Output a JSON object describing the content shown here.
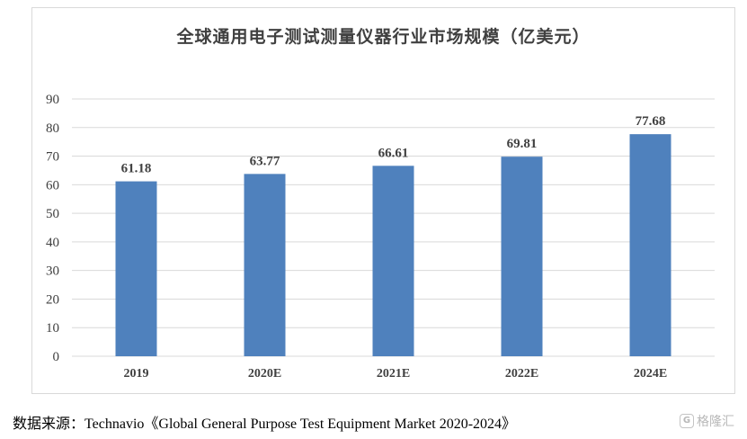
{
  "chart_data": {
    "type": "bar",
    "title": "全球通用电子测试测量仪器行业市场规模（亿美元）",
    "categories": [
      "2019",
      "2020E",
      "2021E",
      "2022E",
      "2024E"
    ],
    "values": [
      61.18,
      63.77,
      66.61,
      69.81,
      77.68
    ],
    "value_labels": [
      "61.18",
      "63.77",
      "66.61",
      "69.81",
      "77.68"
    ],
    "yticks": [
      "0",
      "10",
      "20",
      "30",
      "40",
      "50",
      "60",
      "70",
      "80",
      "90"
    ],
    "ylim": [
      0,
      90
    ],
    "xlabel": "",
    "ylabel": "",
    "grid": true,
    "bar_color": "#4f81bd"
  },
  "source_text": "数据来源：Technavio《Global General Purpose Test Equipment Market 2020-2024》",
  "watermark_text": "格隆汇",
  "watermark_icon": "G"
}
